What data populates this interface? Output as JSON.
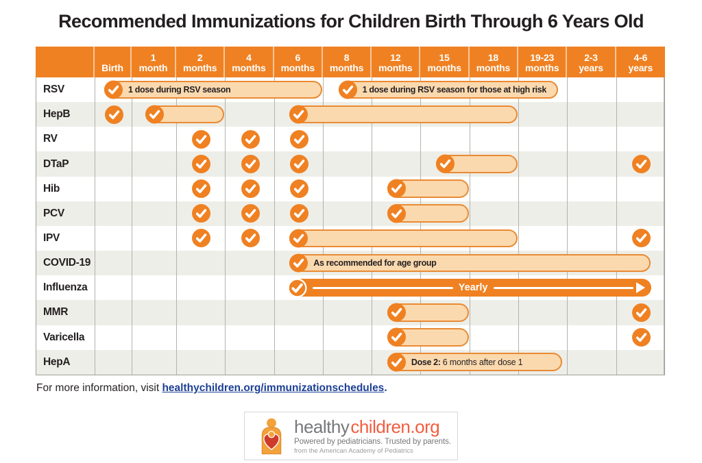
{
  "page": {
    "title": "Recommended Immunizations for Children Birth Through 6 Years Old"
  },
  "chart_data": {
    "type": "table",
    "title": "Recommended Immunizations for Children Birth Through 6 Years Old",
    "legend_note": "check = dose due at that age; shaded pill = range of recommended ages",
    "columns": [
      [
        "Birth"
      ],
      [
        "1",
        "month"
      ],
      [
        "2",
        "months"
      ],
      [
        "4",
        "months"
      ],
      [
        "6",
        "months"
      ],
      [
        "8",
        "months"
      ],
      [
        "12",
        "months"
      ],
      [
        "15",
        "months"
      ],
      [
        "18",
        "months"
      ],
      [
        "19-23",
        "months"
      ],
      [
        "2-3",
        "years"
      ],
      [
        "4-6",
        "years"
      ]
    ],
    "rows": [
      {
        "label": "RSV",
        "items": [
          {
            "type": "pill",
            "from": 1,
            "to": 5,
            "text": "1 dose during RSV season"
          },
          {
            "type": "pill",
            "from": 6,
            "to": 10,
            "text": "1 dose during RSV season for those at high risk",
            "right_inset": 14
          }
        ]
      },
      {
        "label": "HepB",
        "items": [
          {
            "type": "check",
            "col": 1
          },
          {
            "type": "pill",
            "from": 2,
            "to": 3
          },
          {
            "type": "pill",
            "from": 5,
            "to": 9
          }
        ]
      },
      {
        "label": "RV",
        "items": [
          {
            "type": "check",
            "col": 3
          },
          {
            "type": "check",
            "col": 4
          },
          {
            "type": "check",
            "col": 5
          }
        ]
      },
      {
        "label": "DTaP",
        "items": [
          {
            "type": "check",
            "col": 3
          },
          {
            "type": "check",
            "col": 4
          },
          {
            "type": "check",
            "col": 5
          },
          {
            "type": "pill",
            "from": 8,
            "to": 9
          },
          {
            "type": "check",
            "col": 12
          }
        ]
      },
      {
        "label": "Hib",
        "items": [
          {
            "type": "check",
            "col": 3
          },
          {
            "type": "check",
            "col": 4
          },
          {
            "type": "check",
            "col": 5
          },
          {
            "type": "pill",
            "from": 7,
            "to": 8
          }
        ]
      },
      {
        "label": "PCV",
        "items": [
          {
            "type": "check",
            "col": 3
          },
          {
            "type": "check",
            "col": 4
          },
          {
            "type": "check",
            "col": 5
          },
          {
            "type": "pill",
            "from": 7,
            "to": 8
          }
        ]
      },
      {
        "label": "IPV",
        "items": [
          {
            "type": "check",
            "col": 3
          },
          {
            "type": "check",
            "col": 4
          },
          {
            "type": "pill",
            "from": 5,
            "to": 9
          },
          {
            "type": "check",
            "col": 12
          }
        ]
      },
      {
        "label": "COVID-19",
        "items": [
          {
            "type": "pill",
            "from": 5,
            "to": 12,
            "text": "As recommended for age group",
            "right_inset": 22
          }
        ]
      },
      {
        "label": "Influenza",
        "items": [
          {
            "type": "arrow_bar",
            "from": 5,
            "to": 12,
            "text": "Yearly",
            "right_inset": 21
          }
        ]
      },
      {
        "label": "MMR",
        "items": [
          {
            "type": "pill",
            "from": 7,
            "to": 8
          },
          {
            "type": "check",
            "col": 12
          }
        ]
      },
      {
        "label": "Varicella",
        "items": [
          {
            "type": "pill",
            "from": 7,
            "to": 8
          },
          {
            "type": "check",
            "col": 12
          }
        ]
      },
      {
        "label": "HepA",
        "items": [
          {
            "type": "pill",
            "from": 7,
            "to": 10,
            "bold": "Dose 2:",
            "text": "6 months after dose 1",
            "right_inset": 8
          }
        ]
      }
    ]
  },
  "footer": {
    "text": "For more information, visit ",
    "link": "healthychildren.org/immunizationschedules",
    "suffix": "."
  },
  "logo": {
    "word1": "healthy",
    "word2": "children",
    "word3": ".org",
    "tagline": "Powered by pediatricians. Trusted by parents.",
    "subline": "from the American Academy of Pediatrics"
  },
  "colors": {
    "orange": "#EF8122",
    "pill_fill": "#FBD9AE",
    "pill_border": "#E98A33",
    "row_alt": "#EEEEE8",
    "grid_line": "#b3b3ab",
    "link_navy": "#1C3F94",
    "logo_gray": "#77787B",
    "logo_coral": "#F15D3F",
    "heart_red": "#CE3B2B"
  }
}
